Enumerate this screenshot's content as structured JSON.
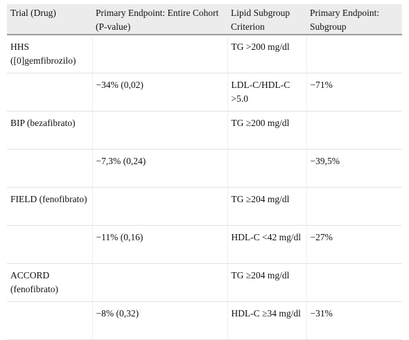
{
  "table": {
    "headers": [
      "Trial (Drug)",
      "Primary Endpoint: Entire Cohort (P-value)",
      "Lipid Subgroup Criterion",
      "Primary Endpoint: Subgroup"
    ],
    "rows": [
      [
        "HHS ([0]gemfibrozilo)",
        "",
        "TG >200 mg/dl",
        ""
      ],
      [
        "",
        "−34% (0,02)",
        "LDL-C/HDL-C >5.0",
        "−71%"
      ],
      [
        "BIP (bezafibrato)",
        "",
        "TG ≥200 mg/dl",
        ""
      ],
      [
        "",
        "−7,3% (0,24)",
        "",
        "−39,5%"
      ],
      [
        "FIELD (fenofibrato)",
        "",
        "TG ≥204 mg/dl",
        ""
      ],
      [
        "",
        "−11% (0,16)",
        "HDL-C <42 mg/dl",
        "−27%"
      ],
      [
        "ACCORD (fenofibrato)",
        "",
        "TG ≥204 mg/dl",
        ""
      ],
      [
        "",
        "−8% (0,32)",
        "HDL-C ≥34 mg/dl",
        "−31%"
      ]
    ]
  }
}
